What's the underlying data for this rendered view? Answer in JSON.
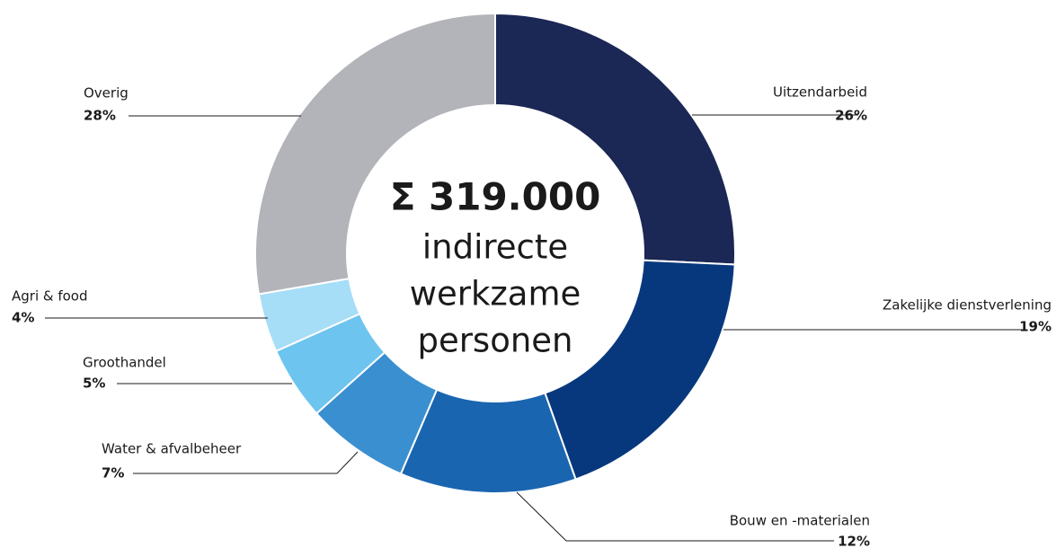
{
  "chart_data": {
    "type": "donut",
    "center_value": "Σ 319.000",
    "center_text": [
      "indirecte",
      "werkzame",
      "personen"
    ],
    "categories": [
      "Uitzendarbeid",
      "Zakelijke dienstverlening",
      "Bouw en -materialen",
      "Water & afvalbeheer",
      "Groothandel",
      "Agri & food",
      "Overig"
    ],
    "values": [
      26,
      19,
      12,
      7,
      5,
      4,
      28
    ],
    "value_labels": [
      "26%",
      "19%",
      "12%",
      "7%",
      "5%",
      "4%",
      "28%"
    ],
    "colors": [
      "#1b2754",
      "#07387d",
      "#1a65b0",
      "#3a8fd0",
      "#6cc4ef",
      "#a6ddf7",
      "#b2b4b9"
    ]
  }
}
